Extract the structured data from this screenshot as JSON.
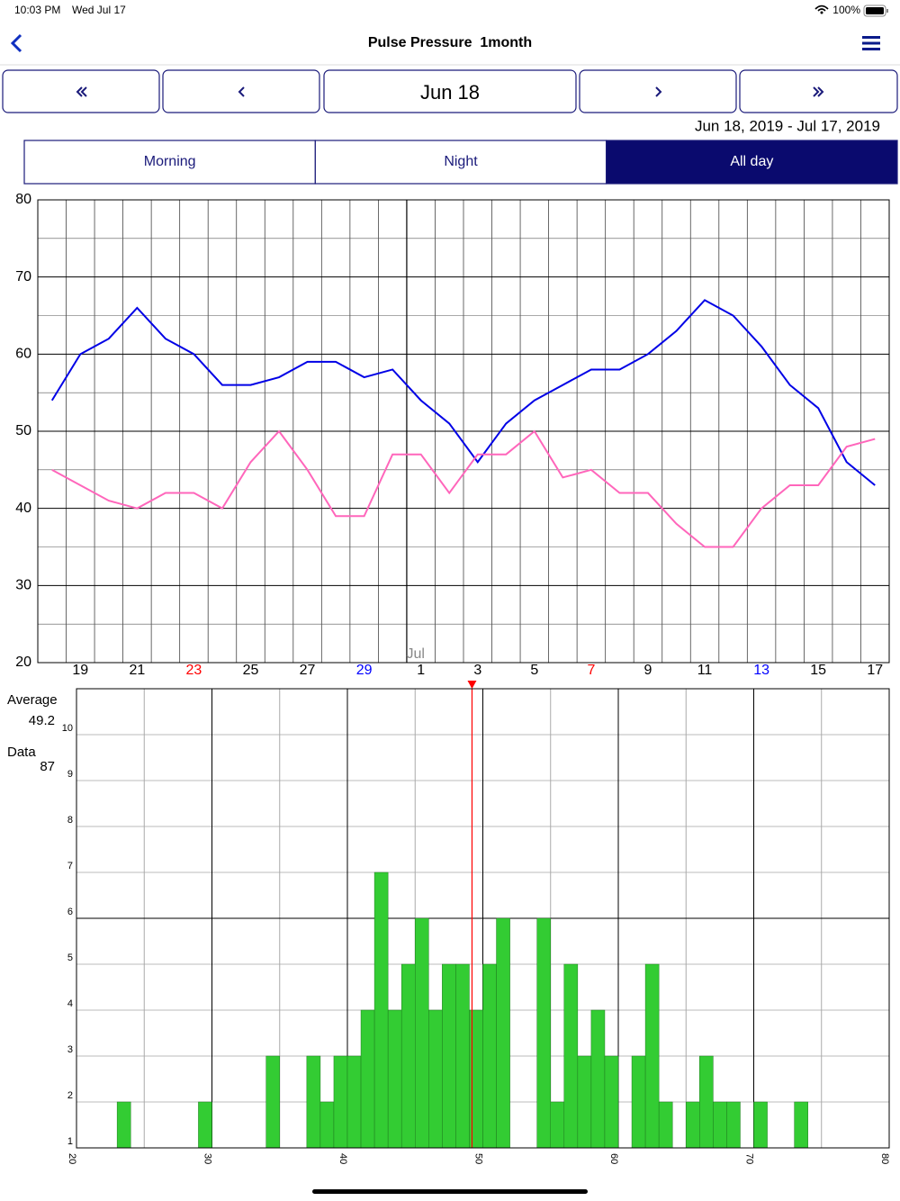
{
  "status_bar": {
    "time": "10:03 PM",
    "date": "Wed Jul 17",
    "battery": "100%"
  },
  "nav": {
    "title": "Pulse Pressure  1month"
  },
  "period_button": "Jun 18",
  "date_range": "Jun 18, 2019 - Jul 17, 2019",
  "tabs": [
    "Morning",
    "Night",
    "All day"
  ],
  "selected_tab": "All day",
  "stats": {
    "average_label": "Average",
    "data_label": "Data",
    "data_count": 87
  },
  "chart_data": [
    {
      "type": "line",
      "categories": [
        null,
        "19",
        null,
        "21",
        null,
        "23",
        null,
        "25",
        null,
        "27",
        null,
        "29",
        null,
        "1",
        null,
        "3",
        null,
        "5",
        null,
        "7",
        null,
        "9",
        null,
        "11",
        null,
        "13",
        null,
        "15",
        null,
        "17"
      ],
      "category_colors": [
        "#000000",
        "#000000",
        "#000000",
        "#000000",
        "#000000",
        "#ff0000",
        "#000000",
        "#000000",
        "#000000",
        "#000000",
        "#000000",
        "#0000ff",
        "#000000",
        "#000000",
        "#000000",
        "#000000",
        "#000000",
        "#000000",
        "#000000",
        "#ff0000",
        "#000000",
        "#000000",
        "#000000",
        "#000000",
        "#000000",
        "#0000ff",
        "#000000",
        "#000000",
        "#000000",
        "#000000"
      ],
      "month_marks": [
        {
          "category": 13,
          "label": "Jul"
        }
      ],
      "series": [
        {
          "color": "#0000e6",
          "values": [
            54,
            60,
            62,
            66,
            62,
            60,
            56,
            56,
            57,
            59,
            59,
            57,
            58,
            54,
            51,
            46,
            51,
            54,
            56,
            58,
            58,
            60,
            63,
            67,
            65,
            61,
            56,
            53,
            46,
            43
          ]
        },
        {
          "color": "#ff66bb",
          "values": [
            45,
            43,
            41,
            40,
            42,
            42,
            40,
            46,
            50,
            45,
            39,
            39,
            47,
            47,
            42,
            47,
            47,
            50,
            44,
            45,
            42,
            42,
            38,
            35,
            35,
            40,
            43,
            43,
            48,
            49
          ]
        }
      ],
      "ylim": [
        20,
        80
      ],
      "yticks": [
        20,
        30,
        40,
        50,
        60,
        70,
        80
      ],
      "minor_yticks": [
        25,
        35,
        45,
        55,
        65,
        75
      ],
      "grid": true
    },
    {
      "type": "histogram",
      "bins": [
        20,
        21,
        22,
        23,
        24,
        25,
        26,
        27,
        28,
        29,
        30,
        31,
        32,
        33,
        34,
        35,
        36,
        37,
        38,
        39,
        40,
        41,
        42,
        43,
        44,
        45,
        46,
        47,
        48,
        49,
        50,
        51,
        52,
        53,
        54,
        55,
        56,
        57,
        58,
        59,
        60,
        61,
        62,
        63,
        64,
        65,
        66,
        67,
        68,
        69,
        70,
        71,
        72,
        73,
        74,
        75,
        76,
        77,
        78,
        79,
        80
      ],
      "values": [
        1,
        1,
        1,
        2,
        1,
        1,
        1,
        1,
        1,
        2,
        1,
        1,
        1,
        1,
        3,
        1,
        1,
        3,
        2,
        3,
        3,
        4,
        7,
        4,
        5,
        6,
        4,
        5,
        5,
        4,
        5,
        6,
        1,
        1,
        6,
        2,
        5,
        3,
        4,
        3,
        1,
        3,
        5,
        2,
        1,
        2,
        3,
        2,
        2,
        1,
        2,
        1,
        1,
        2,
        1,
        1,
        1,
        1,
        1,
        1
      ],
      "color": "#33cc33",
      "average": 49.2,
      "average_color": "#ff0000",
      "xlim": [
        20,
        80
      ],
      "xticks": [
        20,
        30,
        40,
        50,
        60,
        70,
        80
      ],
      "minor_xticks": [
        25,
        35,
        45,
        55,
        65,
        75
      ],
      "ylim": [
        1,
        11
      ],
      "yticks": [
        1,
        2,
        3,
        4,
        5,
        6,
        7,
        8,
        9,
        10
      ],
      "y_reference": 6,
      "grid": true
    }
  ]
}
